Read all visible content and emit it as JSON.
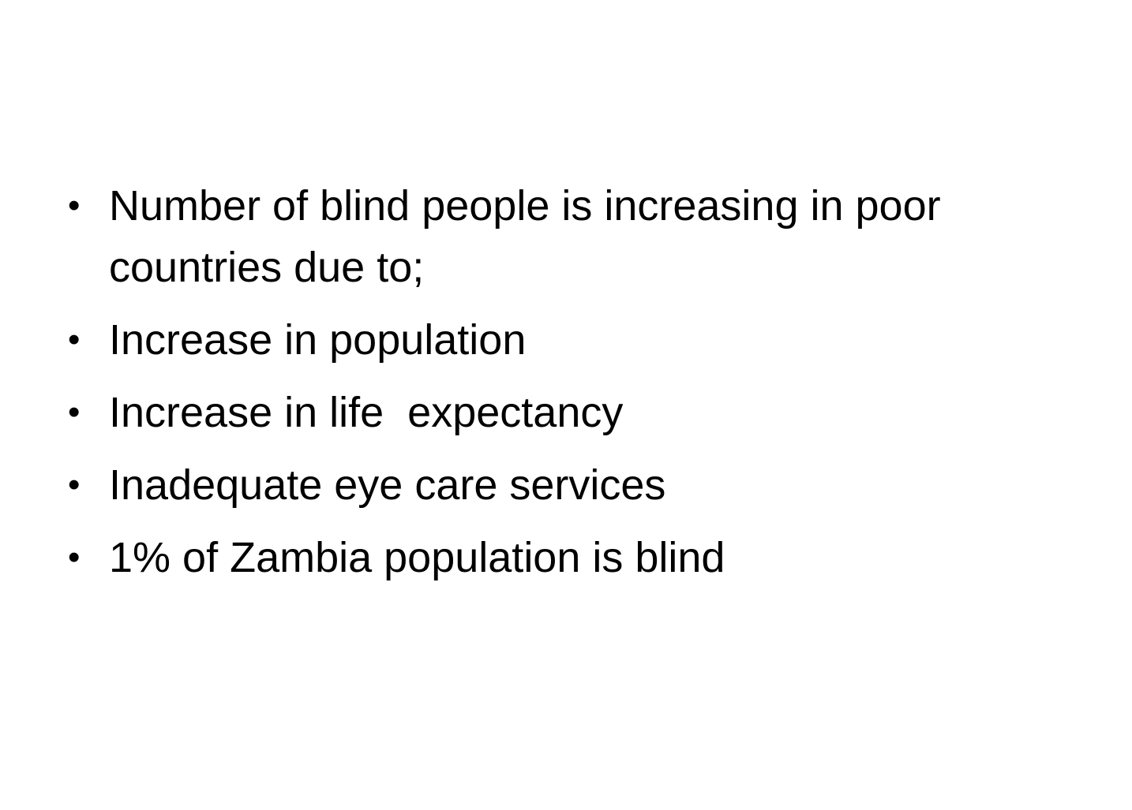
{
  "slide": {
    "bullets": [
      "Number of blind people is increasing in poor countries due to;",
      "Increase in population",
      "Increase in life  expectancy",
      "Inadequate eye care services",
      "1% of Zambia population is blind"
    ],
    "bullet_symbol": "•"
  }
}
